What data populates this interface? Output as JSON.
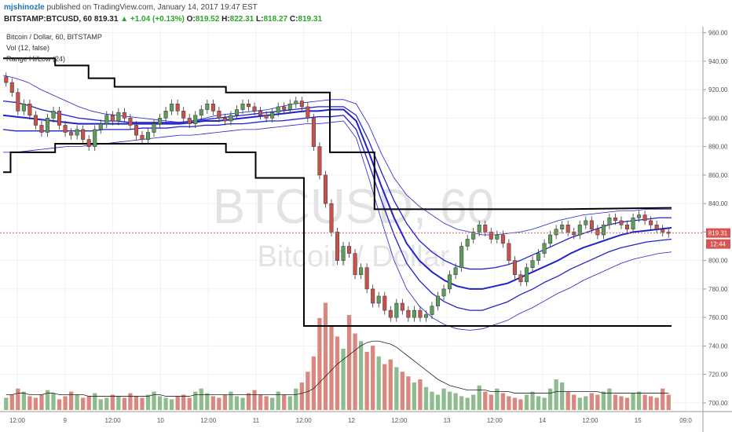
{
  "header": {
    "author": "mjshinozle",
    "published_text": "published on TradingView.com, January 14, 2017 19:47 EST",
    "symbol": "BITSTAMP:BTCUSD, 60",
    "last": "819.31",
    "change": "▲ +1.04 (+0.13%)",
    "o_label": "O:",
    "o_value": "819.52",
    "h_label": "H:",
    "h_value": "822.31",
    "l_label": "L:",
    "l_value": "818.27",
    "c_label": "C:",
    "c_value": "819.31"
  },
  "legend": {
    "title": "Bitcoin / Dollar, 60, BITSTAMP",
    "vol": "Vol (12, false)",
    "range": "Range Hi/Low (24)"
  },
  "watermark": {
    "big": "BTCUSD, 60",
    "small": "Bitcoin / Dollar"
  },
  "colors": {
    "up": "#5a9e5a",
    "down": "#c9514c",
    "vol_up": "#8fbc8f",
    "vol_down": "#d98880",
    "band": "#2222cc",
    "range": "#000000",
    "price_line": "#e07070",
    "tag": "#d9534f"
  },
  "chart_data": {
    "type": "candlestick",
    "ylim": [
      695,
      962
    ],
    "y_ticks": [
      "960.00",
      "940.00",
      "920.00",
      "900.00",
      "880.00",
      "860.00",
      "840.00",
      "820.00",
      "800.00",
      "780.00",
      "760.00",
      "740.00",
      "720.00",
      "700.00"
    ],
    "x_ticks": [
      "12:00",
      "9",
      "12:00",
      "10",
      "12:00",
      "11",
      "12:00",
      "12",
      "12:00",
      "13",
      "12:00",
      "14",
      "12:00",
      "15",
      "09:0"
    ],
    "price_label": "819.31",
    "countdown_label": "12:44",
    "last_price": 819.31,
    "closes": [
      925,
      918,
      905,
      910,
      902,
      895,
      890,
      900,
      905,
      895,
      890,
      888,
      892,
      885,
      880,
      892,
      896,
      902,
      898,
      904,
      900,
      895,
      888,
      885,
      890,
      896,
      900,
      905,
      910,
      905,
      900,
      896,
      902,
      906,
      910,
      905,
      900,
      898,
      902,
      906,
      910,
      908,
      905,
      902,
      900,
      904,
      908,
      906,
      910,
      912,
      908,
      900,
      880,
      860,
      840,
      820,
      800,
      810,
      805,
      790,
      795,
      780,
      770,
      775,
      765,
      760,
      770,
      765,
      760,
      765,
      760,
      762,
      768,
      775,
      780,
      790,
      795,
      810,
      815,
      820,
      825,
      820,
      815,
      818,
      812,
      800,
      790,
      785,
      795,
      800,
      805,
      812,
      818,
      822,
      825,
      820,
      818,
      825,
      828,
      822,
      818,
      825,
      830,
      828,
      825,
      822,
      830,
      832,
      828,
      825,
      822,
      820,
      819
    ],
    "volumes": [
      8,
      10,
      14,
      12,
      9,
      8,
      10,
      13,
      11,
      7,
      9,
      12,
      10,
      8,
      9,
      11,
      7,
      8,
      10,
      9,
      8,
      11,
      9,
      8,
      10,
      12,
      9,
      8,
      7,
      9,
      10,
      8,
      12,
      14,
      11,
      9,
      8,
      10,
      12,
      9,
      8,
      11,
      13,
      10,
      9,
      8,
      12,
      10,
      9,
      14,
      18,
      25,
      35,
      60,
      70,
      55,
      48,
      40,
      62,
      50,
      45,
      38,
      42,
      35,
      30,
      33,
      28,
      25,
      22,
      18,
      20,
      15,
      12,
      10,
      14,
      12,
      11,
      9,
      8,
      10,
      16,
      12,
      10,
      14,
      11,
      9,
      8,
      7,
      10,
      12,
      9,
      8,
      14,
      20,
      18,
      12,
      10,
      8,
      9,
      11,
      10,
      12,
      14,
      10,
      9,
      8,
      11,
      12,
      10,
      9,
      8,
      14,
      10
    ],
    "vol_ma": [
      10,
      10,
      11,
      11,
      10,
      10,
      10,
      11,
      11,
      10,
      10,
      10,
      10,
      10,
      9,
      9,
      9,
      9,
      9,
      9,
      9,
      9,
      9,
      9,
      9,
      10,
      10,
      9,
      9,
      9,
      9,
      9,
      10,
      10,
      10,
      10,
      10,
      10,
      10,
      10,
      10,
      10,
      10,
      10,
      10,
      10,
      10,
      10,
      10,
      10,
      11,
      12,
      14,
      18,
      22,
      26,
      30,
      33,
      36,
      39,
      42,
      44,
      45,
      45,
      44,
      43,
      41,
      38,
      35,
      32,
      29,
      26,
      23,
      20,
      18,
      16,
      15,
      14,
      13,
      13,
      13,
      13,
      12,
      12,
      12,
      12,
      11,
      11,
      11,
      11,
      11,
      11,
      11,
      12,
      12,
      12,
      12,
      12,
      12,
      12,
      12,
      11,
      11,
      11,
      11,
      11,
      11,
      11,
      11,
      11,
      11,
      11,
      11
    ],
    "range_high": [
      [
        0,
        942
      ],
      [
        14,
        942
      ],
      [
        14,
        937
      ],
      [
        23,
        937
      ],
      [
        23,
        928
      ],
      [
        30,
        928
      ],
      [
        30,
        922
      ],
      [
        60,
        922
      ],
      [
        60,
        918
      ],
      [
        88,
        918
      ],
      [
        88,
        876
      ],
      [
        92,
        876
      ],
      [
        92,
        876
      ],
      [
        100,
        876
      ],
      [
        100,
        836
      ],
      [
        150,
        836
      ],
      [
        150,
        836
      ],
      [
        180,
        837
      ]
    ],
    "range_low": [
      [
        0,
        862
      ],
      [
        2,
        862
      ],
      [
        2,
        876
      ],
      [
        14,
        876
      ],
      [
        14,
        882
      ],
      [
        60,
        882
      ],
      [
        60,
        876
      ],
      [
        68,
        876
      ],
      [
        68,
        858
      ],
      [
        81,
        858
      ],
      [
        81,
        754
      ],
      [
        130,
        754
      ],
      [
        130,
        754
      ],
      [
        180,
        754
      ]
    ],
    "band_series": [
      {
        "values": [
          930,
          928,
          925,
          920,
          916,
          912,
          908,
          905,
          903,
          902,
          901,
          900,
          899,
          898,
          897,
          898,
          900,
          902,
          903,
          904,
          905,
          906,
          908,
          910,
          911,
          912,
          913,
          913,
          910,
          895,
          875,
          858,
          846,
          838,
          832,
          826,
          822,
          820,
          818,
          818,
          819,
          820,
          822,
          825,
          828,
          830,
          832,
          833,
          834,
          835,
          835,
          836,
          836,
          836
        ]
      },
      {
        "values": [
          912,
          911,
          909,
          906,
          904,
          902,
          900,
          899,
          898,
          898,
          897,
          897,
          897,
          897,
          897,
          898,
          899,
          900,
          901,
          902,
          903,
          904,
          905,
          906,
          907,
          908,
          908,
          908,
          902,
          884,
          862,
          842,
          826,
          814,
          806,
          800,
          796,
          794,
          794,
          795,
          797,
          800,
          804,
          808,
          812,
          816,
          819,
          822,
          825,
          827,
          828,
          829,
          830,
          830
        ]
      },
      {
        "values": [
          902,
          901,
          900,
          899,
          898,
          897,
          896,
          896,
          896,
          896,
          896,
          896,
          896,
          896,
          896,
          897,
          898,
          898,
          899,
          900,
          901,
          902,
          903,
          904,
          905,
          905,
          906,
          906,
          898,
          876,
          852,
          830,
          812,
          800,
          792,
          786,
          782,
          780,
          780,
          782,
          784,
          788,
          792,
          796,
          800,
          805,
          809,
          812,
          815,
          818,
          820,
          821,
          822,
          823
        ]
      },
      {
        "values": [
          892,
          891,
          891,
          891,
          891,
          891,
          891,
          891,
          892,
          892,
          892,
          893,
          893,
          893,
          894,
          894,
          895,
          895,
          896,
          896,
          897,
          898,
          898,
          899,
          900,
          901,
          901,
          902,
          892,
          868,
          842,
          818,
          798,
          786,
          777,
          771,
          767,
          765,
          765,
          768,
          771,
          776,
          780,
          785,
          789,
          794,
          798,
          802,
          806,
          809,
          811,
          813,
          814,
          815
        ]
      },
      {
        "values": [
          876,
          876,
          877,
          878,
          879,
          880,
          880,
          881,
          882,
          883,
          884,
          885,
          886,
          887,
          888,
          888,
          889,
          890,
          891,
          892,
          892,
          893,
          894,
          895,
          896,
          896,
          897,
          898,
          886,
          858,
          828,
          800,
          780,
          768,
          760,
          755,
          752,
          751,
          752,
          755,
          758,
          763,
          767,
          772,
          777,
          781,
          786,
          790,
          794,
          798,
          801,
          803,
          805,
          806
        ]
      }
    ]
  }
}
